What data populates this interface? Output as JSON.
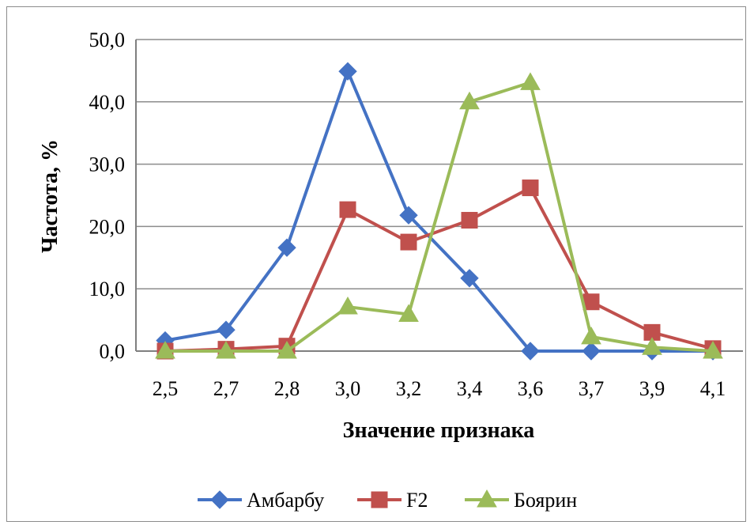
{
  "chart_data": {
    "type": "line",
    "title": "",
    "xlabel": "Значение признака",
    "ylabel": "Частота, %",
    "categories": [
      "2,5",
      "2,7",
      "2,8",
      "3,0",
      "3,2",
      "3,4",
      "3,6",
      "3,7",
      "3,9",
      "4,1"
    ],
    "y_ticks": [
      "0,0",
      "10,0",
      "20,0",
      "30,0",
      "40,0",
      "50,0"
    ],
    "ylim": [
      0,
      50
    ],
    "grid": "horizontal",
    "legend_position": "bottom",
    "series": [
      {
        "name": "Амбарбу",
        "marker": "diamond",
        "color": "#4472c4",
        "values": [
          1.7,
          3.4,
          16.6,
          44.9,
          21.8,
          11.7,
          0.0,
          0.0,
          0.0,
          0.0
        ]
      },
      {
        "name": "F2",
        "marker": "square",
        "color": "#c0504d",
        "values": [
          0.0,
          0.3,
          0.8,
          22.7,
          17.5,
          21.0,
          26.2,
          7.9,
          3.0,
          0.4
        ]
      },
      {
        "name": "Боярин",
        "marker": "triangle",
        "color": "#9bbb59",
        "values": [
          0.0,
          0.0,
          0.0,
          7.1,
          5.9,
          40.0,
          43.1,
          2.3,
          0.6,
          0.0
        ]
      }
    ]
  }
}
